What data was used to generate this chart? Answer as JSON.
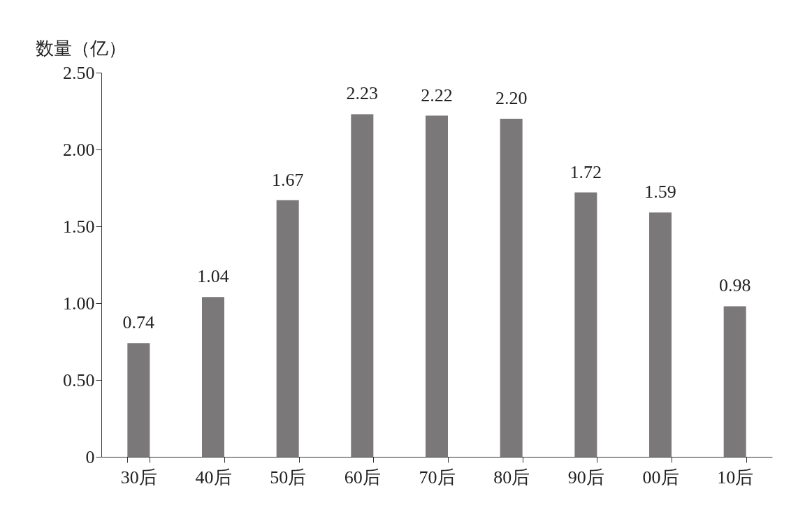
{
  "chart_data": {
    "type": "bar",
    "ylabel": "数量（亿）",
    "categories": [
      "30后",
      "40后",
      "50后",
      "60后",
      "70后",
      "80后",
      "90后",
      "00后",
      "10后"
    ],
    "values": [
      0.74,
      1.04,
      1.67,
      2.23,
      2.22,
      2.2,
      1.72,
      1.59,
      0.98
    ],
    "color": "#7a7878",
    "ylim": [
      0,
      2.5
    ],
    "yticks": [
      0,
      {
        "value": 0.5,
        "label": "0.50"
      },
      {
        "value": 1,
        "label": "1.00"
      },
      {
        "value": 1.5,
        "label": "1.50"
      },
      {
        "value": 2,
        "label": "2.00"
      },
      {
        "value": 2.5,
        "label": "2.50"
      }
    ],
    "value_labels": [
      "0.74",
      "1.04",
      "1.67",
      "2.23",
      "2.22",
      "2.20",
      "1.72",
      "1.59",
      "0.98"
    ],
    "grid": false
  }
}
